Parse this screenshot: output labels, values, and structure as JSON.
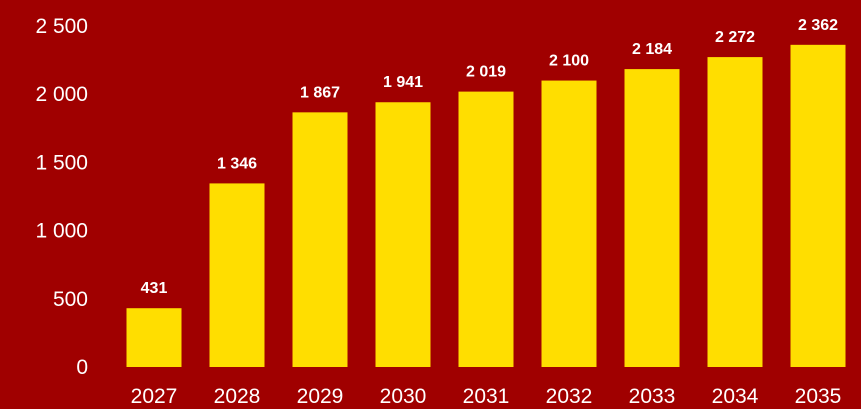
{
  "chart_data": {
    "type": "bar",
    "categories": [
      "2027",
      "2028",
      "2029",
      "2030",
      "2031",
      "2032",
      "2033",
      "2034",
      "2035"
    ],
    "values": [
      431,
      1346,
      1867,
      1941,
      2019,
      2100,
      2184,
      2272,
      2362
    ],
    "value_labels": [
      "431",
      "1 346",
      "1 867",
      "1 941",
      "2 019",
      "2 100",
      "2 184",
      "2 272",
      "2 362"
    ],
    "y_ticks": [
      0,
      500,
      1000,
      1500,
      2000,
      2500
    ],
    "y_tick_labels": [
      "0",
      "500",
      "1 000",
      "1 500",
      "2 000",
      "2 500"
    ],
    "ylim": [
      0,
      2500
    ],
    "title": "",
    "xlabel": "",
    "ylabel": "",
    "grid": false,
    "legend": "none",
    "colors": {
      "background": "#a00000",
      "bar": "#ffde00",
      "text": "#ffffff"
    }
  }
}
